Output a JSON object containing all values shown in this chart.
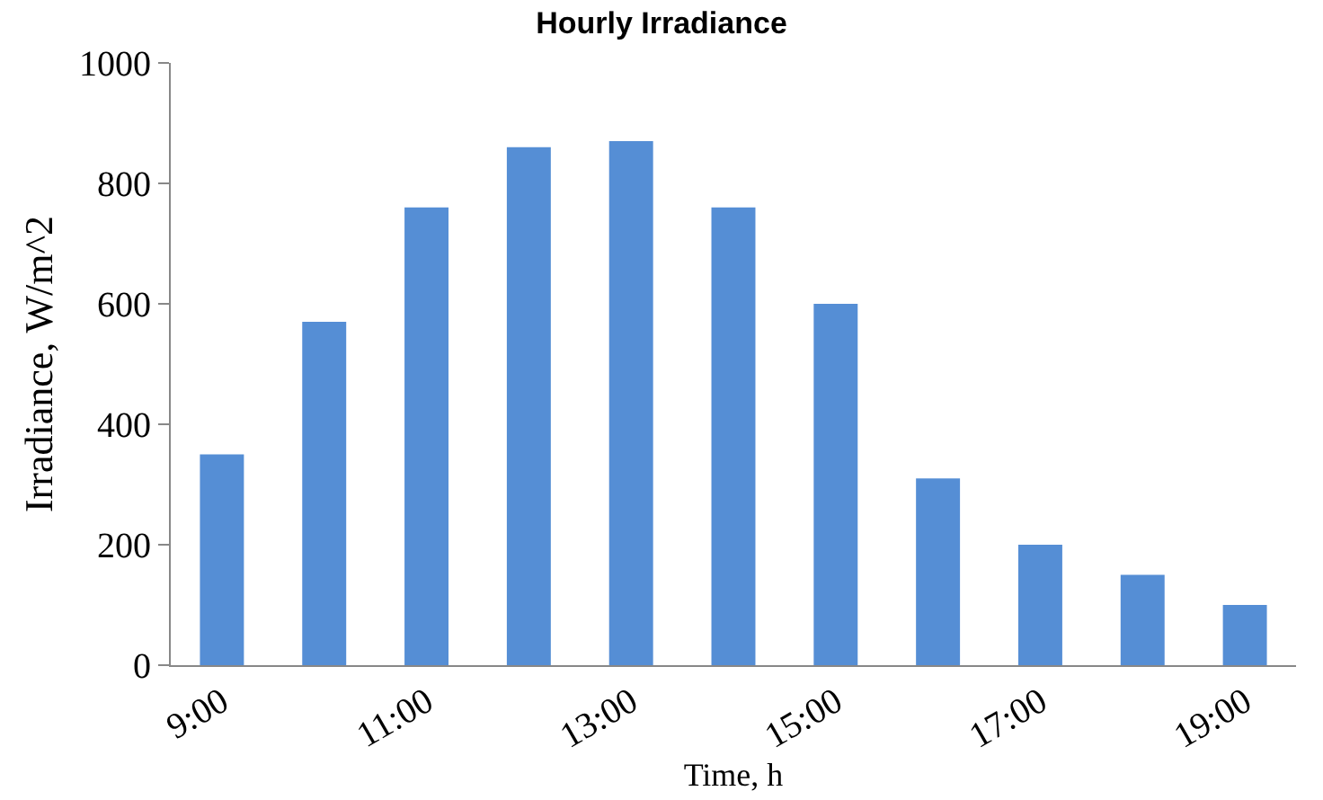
{
  "chart_data": {
    "type": "bar",
    "title": "Hourly Irradiance",
    "xlabel": "Time, h",
    "ylabel": "Irradiance, W/m^2",
    "categories": [
      "9:00",
      null,
      "11:00",
      null,
      "13:00",
      null,
      "15:00",
      null,
      "17:00",
      null,
      "19:00"
    ],
    "values": [
      350,
      570,
      760,
      860,
      870,
      760,
      600,
      310,
      200,
      150,
      100
    ],
    "color": "#558ed5",
    "ylim": [
      0,
      1000
    ],
    "yticks": [
      0,
      200,
      400,
      600,
      800,
      1000
    ],
    "grid": false
  }
}
